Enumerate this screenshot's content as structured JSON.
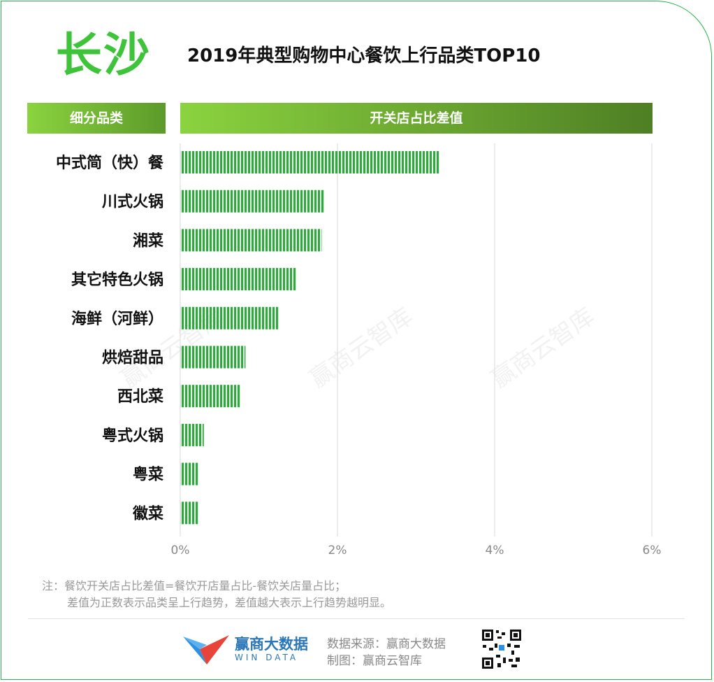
{
  "header": {
    "city": "长沙",
    "title": "2019年典型购物中心餐饮上行品类TOP10"
  },
  "table_header": {
    "left": "细分品类",
    "right": "开关店占比差值"
  },
  "colors": {
    "bar": "#2fa83d",
    "grid": "#d9d9d9",
    "frame": "#27b24a"
  },
  "chart_data": {
    "type": "bar",
    "orientation": "horizontal",
    "categories": [
      "中式简（快）餐",
      "川式火锅",
      "湘菜",
      "其它特色火锅",
      "海鲜（河鲜）",
      "烘焙甜品",
      "西北菜",
      "粤式火锅",
      "粤菜",
      "徽菜"
    ],
    "values": [
      3.3,
      1.84,
      1.8,
      1.48,
      1.26,
      0.83,
      0.77,
      0.3,
      0.24,
      0.24
    ],
    "xlim": [
      0,
      6
    ],
    "xticks": [
      "0%",
      "2%",
      "4%",
      "6%"
    ],
    "grid": true
  },
  "watermarks": [
    "赢商云智库",
    "赢商云智库",
    "赢商云智库"
  ],
  "notes": {
    "line1": "注：餐饮开关店占比差值=餐饮开店量占比-餐饮关店量占比；",
    "line2": "差值为正数表示品类呈上行趋势，差值越大表示上行趋势越明显。"
  },
  "footer": {
    "brand_cn": "赢商大数据",
    "brand_en": "WIN DATA",
    "source": "数据来源：赢商大数据",
    "maker": "制图：赢商云智库"
  }
}
